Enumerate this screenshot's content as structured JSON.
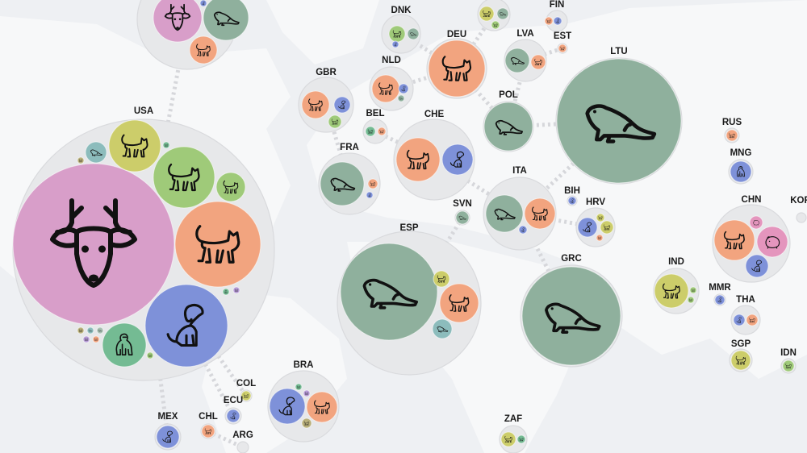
{
  "palette": {
    "deer": "#d89ec9",
    "otter": "#8fb09d",
    "cat_orange": "#f2a47f",
    "cat_yellow": "#cccd6a",
    "cat_green": "#9fca79",
    "dog": "#7e91d9",
    "teal": "#8cbcbc",
    "gorilla": "#74bb93",
    "hamster": "#e495bd",
    "olive": "#b9b07a",
    "purple": "#b69ad6",
    "gray_green": "#a8bfb2"
  },
  "countries": [
    {
      "code": "",
      "animals": [
        {
          "type": "deer",
          "color": "deer"
        },
        {
          "type": "otter",
          "color": "otter"
        },
        {
          "type": "cat",
          "color": "cat_orange"
        },
        {
          "type": "dog",
          "color": "dog"
        }
      ]
    },
    {
      "code": "USA",
      "animals": [
        {
          "type": "deer",
          "color": "deer"
        },
        {
          "type": "cat",
          "color": "cat_yellow"
        },
        {
          "type": "cat",
          "color": "cat_green"
        },
        {
          "type": "cat",
          "color": "cat_green"
        },
        {
          "type": "cat",
          "color": "cat_orange"
        },
        {
          "type": "dog",
          "color": "dog"
        },
        {
          "type": "gorilla",
          "color": "gorilla"
        },
        {
          "type": "otter",
          "color": "teal"
        },
        {
          "type": "cat",
          "color": "olive"
        },
        {
          "type": "cat",
          "color": "gorilla"
        },
        {
          "type": "gorilla",
          "color": "gorilla"
        },
        {
          "type": "cat",
          "color": "purple"
        },
        {
          "type": "cat",
          "color": "olive"
        },
        {
          "type": "otter",
          "color": "teal"
        },
        {
          "type": "otter",
          "color": "gray_green"
        },
        {
          "type": "cat",
          "color": "purple"
        },
        {
          "type": "cat",
          "color": "cat_orange"
        },
        {
          "type": "cat",
          "color": "cat_green"
        }
      ]
    },
    {
      "code": "GBR",
      "animals": [
        {
          "type": "cat",
          "color": "cat_orange"
        },
        {
          "type": "dog",
          "color": "dog"
        },
        {
          "type": "cat",
          "color": "cat_green"
        }
      ]
    },
    {
      "code": "BEL",
      "animals": [
        {
          "type": "cat",
          "color": "gorilla"
        },
        {
          "type": "cat",
          "color": "cat_orange"
        }
      ]
    },
    {
      "code": "NLD",
      "animals": [
        {
          "type": "cat",
          "color": "cat_orange"
        },
        {
          "type": "dog",
          "color": "dog"
        },
        {
          "type": "otter",
          "color": "otter"
        }
      ]
    },
    {
      "code": "DNK",
      "animals": [
        {
          "type": "cat",
          "color": "cat_green"
        },
        {
          "type": "otter",
          "color": "otter"
        },
        {
          "type": "dog",
          "color": "dog"
        }
      ]
    },
    {
      "code": "FRA",
      "animals": [
        {
          "type": "otter",
          "color": "otter"
        },
        {
          "type": "cat",
          "color": "cat_orange"
        },
        {
          "type": "dog",
          "color": "dog"
        }
      ]
    },
    {
      "code": "DEU",
      "animals": [
        {
          "type": "cat",
          "color": "cat_orange"
        }
      ]
    },
    {
      "code": "CHE",
      "animals": [
        {
          "type": "cat",
          "color": "cat_orange"
        },
        {
          "type": "dog",
          "color": "dog"
        }
      ]
    },
    {
      "code": "",
      "animals": [
        {
          "type": "cat",
          "color": "cat_yellow"
        },
        {
          "type": "otter",
          "color": "otter"
        },
        {
          "type": "cat",
          "color": "cat_green"
        }
      ]
    },
    {
      "code": "FIN",
      "animals": [
        {
          "type": "cat",
          "color": "cat_orange"
        },
        {
          "type": "dog",
          "color": "dog"
        }
      ]
    },
    {
      "code": "EST",
      "animals": [
        {
          "type": "cat",
          "color": "cat_orange"
        }
      ]
    },
    {
      "code": "LVA",
      "animals": [
        {
          "type": "otter",
          "color": "otter"
        },
        {
          "type": "cat",
          "color": "cat_orange"
        }
      ]
    },
    {
      "code": "POL",
      "animals": [
        {
          "type": "otter",
          "color": "otter"
        }
      ]
    },
    {
      "code": "LTU",
      "animals": [
        {
          "type": "otter",
          "color": "otter"
        }
      ]
    },
    {
      "code": "RUS",
      "animals": [
        {
          "type": "cat",
          "color": "cat_orange"
        }
      ]
    },
    {
      "code": "MNG",
      "animals": [
        {
          "type": "gorilla",
          "color": "dog"
        }
      ]
    },
    {
      "code": "CHN",
      "animals": [
        {
          "type": "cat",
          "color": "cat_orange"
        },
        {
          "type": "hamster",
          "color": "hamster"
        },
        {
          "type": "dog",
          "color": "dog"
        },
        {
          "type": "hamster",
          "color": "hamster"
        }
      ]
    },
    {
      "code": "ITA",
      "animals": [
        {
          "type": "otter",
          "color": "otter"
        },
        {
          "type": "cat",
          "color": "cat_orange"
        },
        {
          "type": "dog",
          "color": "dog"
        }
      ]
    },
    {
      "code": "BIH",
      "animals": [
        {
          "type": "dog",
          "color": "dog"
        }
      ]
    },
    {
      "code": "HRV",
      "animals": [
        {
          "type": "dog",
          "color": "dog"
        },
        {
          "type": "cat",
          "color": "cat_yellow"
        },
        {
          "type": "cat",
          "color": "cat_yellow"
        },
        {
          "type": "cat",
          "color": "cat_orange"
        }
      ]
    },
    {
      "code": "SVN",
      "animals": [
        {
          "type": "otter",
          "color": "otter"
        }
      ]
    },
    {
      "code": "ESP",
      "animals": [
        {
          "type": "otter",
          "color": "otter"
        },
        {
          "type": "cat",
          "color": "cat_orange"
        },
        {
          "type": "cat",
          "color": "cat_yellow"
        },
        {
          "type": "otter",
          "color": "teal"
        }
      ]
    },
    {
      "code": "GRC",
      "animals": [
        {
          "type": "otter",
          "color": "otter"
        }
      ]
    },
    {
      "code": "IND",
      "animals": [
        {
          "type": "cat",
          "color": "cat_yellow"
        },
        {
          "type": "cat",
          "color": "cat_green"
        },
        {
          "type": "cat",
          "color": "cat_green"
        }
      ]
    },
    {
      "code": "MMR",
      "animals": [
        {
          "type": "dog",
          "color": "dog"
        }
      ]
    },
    {
      "code": "THA",
      "animals": [
        {
          "type": "dog",
          "color": "dog"
        },
        {
          "type": "cat",
          "color": "cat_orange"
        }
      ]
    },
    {
      "code": "SGP",
      "animals": [
        {
          "type": "cat",
          "color": "cat_yellow"
        }
      ]
    },
    {
      "code": "IDN",
      "animals": [
        {
          "type": "cat",
          "color": "cat_green"
        }
      ]
    },
    {
      "code": "ZAF",
      "animals": [
        {
          "type": "cat",
          "color": "cat_yellow"
        },
        {
          "type": "cat",
          "color": "gorilla"
        }
      ]
    },
    {
      "code": "BRA",
      "animals": [
        {
          "type": "dog",
          "color": "dog"
        },
        {
          "type": "cat",
          "color": "cat_orange"
        },
        {
          "type": "cat",
          "color": "gorilla"
        },
        {
          "type": "cat",
          "color": "purple"
        },
        {
          "type": "cat",
          "color": "olive"
        }
      ]
    },
    {
      "code": "COL",
      "animals": [
        {
          "type": "cat",
          "color": "cat_yellow"
        }
      ]
    },
    {
      "code": "ECU",
      "animals": [
        {
          "type": "dog",
          "color": "dog"
        }
      ]
    },
    {
      "code": "CHL",
      "animals": [
        {
          "type": "cat",
          "color": "cat_orange"
        }
      ]
    },
    {
      "code": "MEX",
      "animals": [
        {
          "type": "dog",
          "color": "dog"
        }
      ]
    },
    {
      "code": "ARG",
      "animals": []
    },
    {
      "code": "KOR",
      "animals": []
    }
  ]
}
